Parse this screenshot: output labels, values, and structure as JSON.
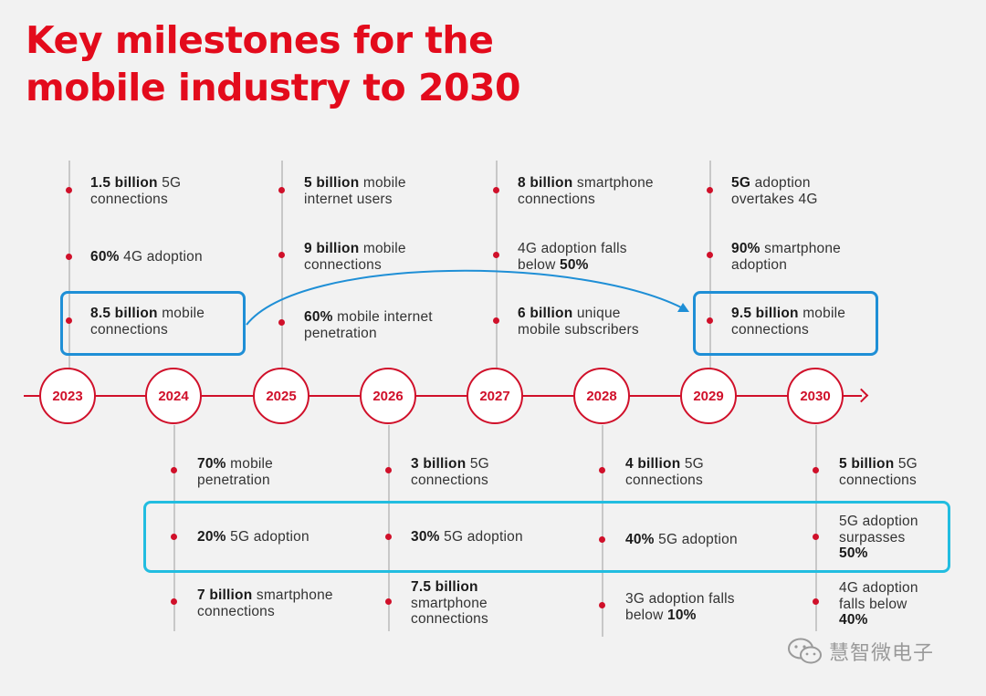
{
  "title": {
    "line1": "Key milestones for the",
    "line2": "mobile industry to 2030"
  },
  "years": [
    "2023",
    "2024",
    "2025",
    "2026",
    "2027",
    "2028",
    "2029",
    "2030"
  ],
  "colors": {
    "accent": "#e30b1c",
    "highlight_blue": "#1f8fd6",
    "highlight_cyan": "#22bde0"
  },
  "milestones": {
    "y2023": {
      "m1": {
        "bold": "1.5 billion",
        "line1": " 5G",
        "line2": "connections"
      },
      "m2": {
        "bold": "60%",
        "line1": " 4G adoption"
      },
      "m3": {
        "bold": "8.5 billion",
        "line1": " mobile",
        "line2": "connections"
      }
    },
    "y2024": {
      "m1": {
        "bold": "70%",
        "line1": " mobile",
        "line2": "penetration"
      },
      "m2": {
        "bold": "20%",
        "line1": " 5G adoption"
      },
      "m3": {
        "bold": "7 billion",
        "line1": " smartphone",
        "line2": "connections"
      }
    },
    "y2025": {
      "m1": {
        "bold": "5 billion",
        "line1": " mobile",
        "line2": "internet users"
      },
      "m2": {
        "bold": "9 billion",
        "line1": " mobile",
        "line2": "connections"
      },
      "m3": {
        "bold": "60%",
        "line1": " mobile internet",
        "line2": "penetration"
      }
    },
    "y2026": {
      "m1": {
        "bold": "3 billion",
        "line1": " 5G",
        "line2": "connections"
      },
      "m2": {
        "bold": "30%",
        "line1": " 5G adoption"
      },
      "m3": {
        "bold": "7.5 billion",
        "line2": "smartphone",
        "line3": "connections"
      }
    },
    "y2027": {
      "m1": {
        "bold": "8 billion",
        "line1": " smartphone",
        "line2": "connections"
      },
      "m2": {
        "line1": "4G adoption falls",
        "line2": "below ",
        "bold": "50%"
      },
      "m3": {
        "bold": "6 billion",
        "line1": " unique",
        "line2": "mobile subscribers"
      }
    },
    "y2028": {
      "m1": {
        "bold": "4 billion",
        "line1": " 5G",
        "line2": "connections"
      },
      "m2": {
        "bold": "40%",
        "line1": " 5G adoption"
      },
      "m3": {
        "line1": "3G adoption falls",
        "line2": "below ",
        "bold": "10%"
      }
    },
    "y2029": {
      "m1": {
        "bold": "5G",
        "line1": " adoption",
        "line2": "overtakes 4G"
      },
      "m2": {
        "bold": "90%",
        "line1": " smartphone",
        "line2": "adoption"
      },
      "m3": {
        "bold": "9.5 billion",
        "line1": " mobile",
        "line2": "connections"
      }
    },
    "y2030": {
      "m1": {
        "bold": "5 billion",
        "line1": " 5G",
        "line2": "connections"
      },
      "m2": {
        "line1": "5G adoption",
        "line2": "surpasses",
        "bold": "50%"
      },
      "m3": {
        "line1": "4G adoption",
        "line2": "falls below",
        "bold": "40%"
      }
    }
  },
  "watermark": {
    "text": "慧智微电子",
    "icon": "wechat-icon"
  }
}
